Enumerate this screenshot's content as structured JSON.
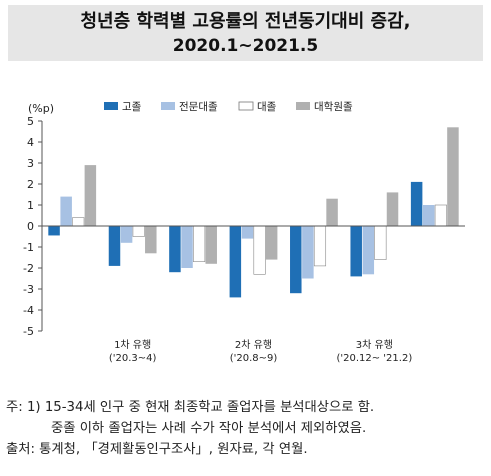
{
  "header": {
    "title_line1": "청년층 학력별 고용률의 전년동기대비 증감,",
    "title_line2": "2020.1~2021.5"
  },
  "chart_data": {
    "type": "bar",
    "title": "청년층 학력별 고용률의 전년동기대비 증감, 2020.1~2021.5",
    "ylabel": "(%p)",
    "ylim": [
      -5,
      5
    ],
    "yticks": [
      5,
      4,
      3,
      2,
      1,
      0,
      -1,
      -2,
      -3,
      -4,
      -5
    ],
    "categories": [
      "",
      "1차 유행",
      "",
      "2차 유행",
      "",
      "3차 유행",
      ""
    ],
    "category_sublabels": [
      "",
      "('20.3~4)",
      "",
      "('20.8~9)",
      "",
      "('20.12~ '21.2)",
      ""
    ],
    "legend_position": "top",
    "grid": false,
    "series": [
      {
        "name": "고졸",
        "color": "#1f6fb5",
        "values": [
          -0.45,
          -1.9,
          -2.2,
          -3.4,
          -3.2,
          -2.4,
          2.1
        ]
      },
      {
        "name": "전문대졸",
        "color": "#a7c1e3",
        "values": [
          1.4,
          -0.8,
          -2.0,
          -0.6,
          -2.5,
          -2.3,
          1.0
        ]
      },
      {
        "name": "대졸",
        "color": "#ffffff",
        "values": [
          0.4,
          -0.5,
          -1.7,
          -2.3,
          -1.9,
          -1.6,
          1.0
        ]
      },
      {
        "name": "대학원졸",
        "color": "#b0b0b0",
        "values": [
          2.9,
          -1.3,
          -1.8,
          -1.6,
          1.3,
          1.6,
          4.7
        ]
      }
    ]
  },
  "notes": {
    "line1": "주: 1) 15-34세 인구 중 현재 최종학교 졸업자를 분석대상으로 함.",
    "line2": "중졸 이하 졸업자는 사례 수가 작아 분석에서 제외하였음.",
    "line3": "출처: 통계청, 「경제활동인구조사」, 원자료, 각 연월."
  }
}
